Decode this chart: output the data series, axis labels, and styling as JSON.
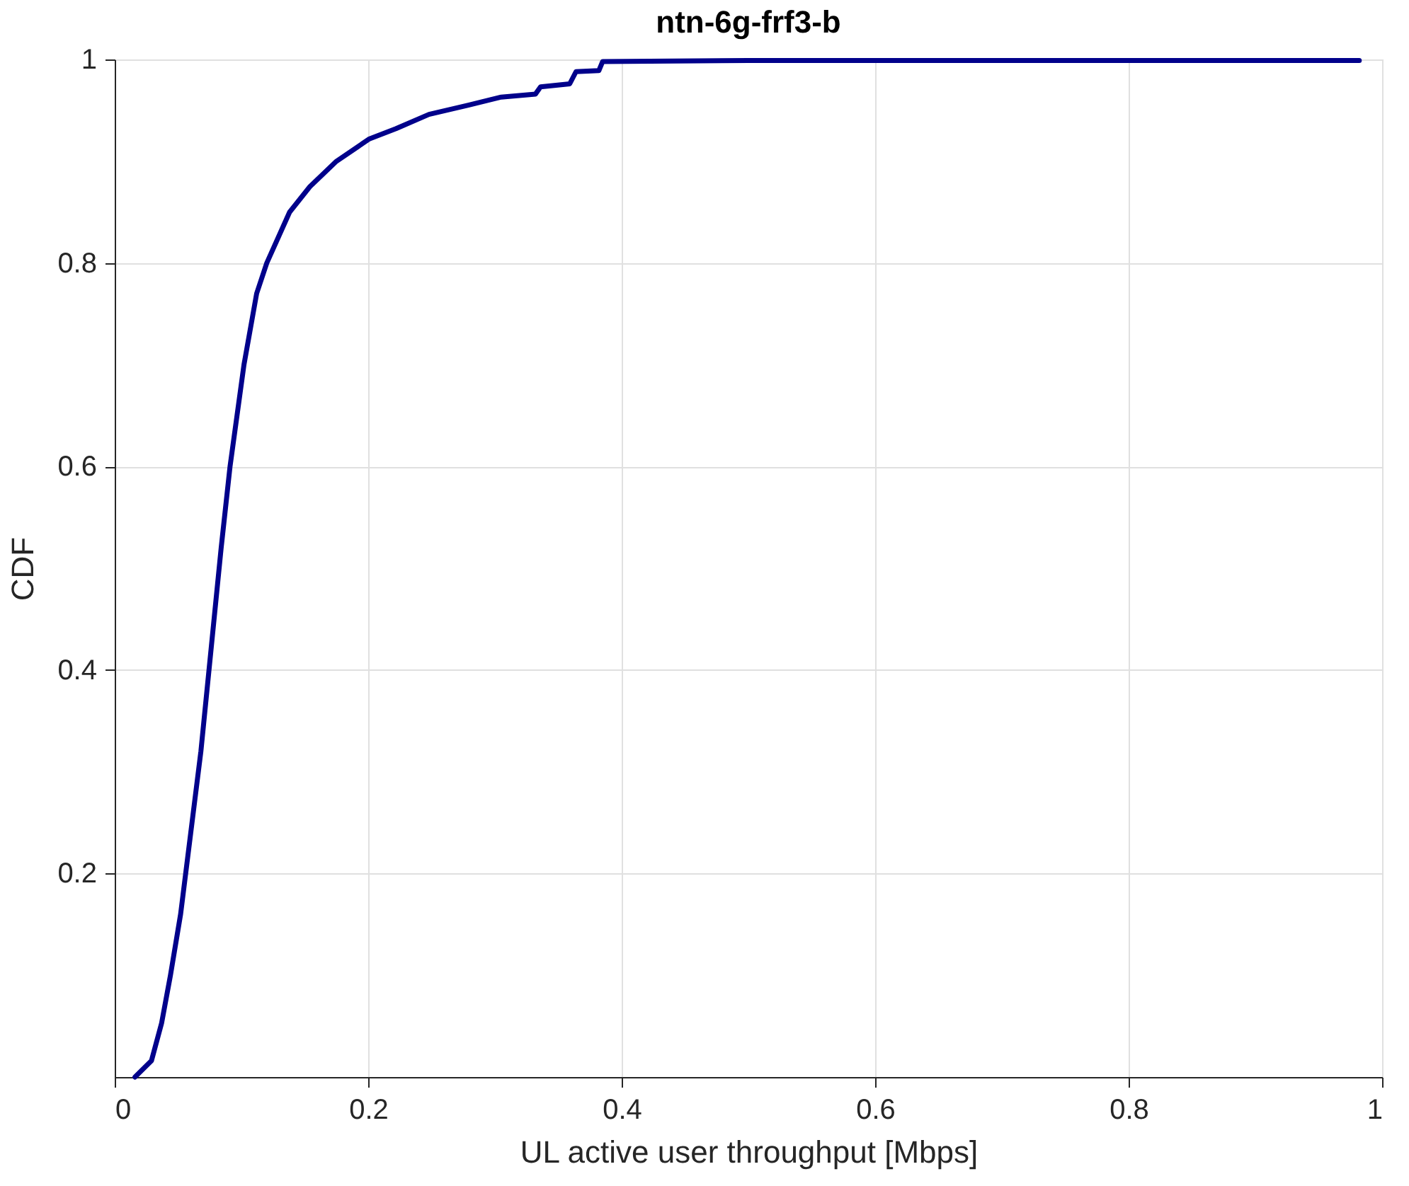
{
  "chart_data": {
    "type": "line",
    "title": "ntn-6g-frf3-b",
    "xlabel": "UL active user throughput [Mbps]",
    "ylabel": "CDF",
    "xlim": [
      0,
      1
    ],
    "xticks": [
      0,
      0.2,
      0.4,
      0.6,
      0.8,
      1
    ],
    "ylim": [
      0,
      1
    ],
    "yticks": [
      0.2,
      0.4,
      0.6,
      0.8,
      1
    ],
    "grid": true,
    "marker": "none",
    "line_style": "solid",
    "series": [
      {
        "color": "#00008b",
        "x": [
          0.016,
          0.029,
          0.037,
          0.044,
          0.052,
          0.06,
          0.068,
          0.076,
          0.084,
          0.091,
          0.102,
          0.112,
          0.12,
          0.138,
          0.154,
          0.175,
          0.201,
          0.222,
          0.248,
          0.279,
          0.305,
          0.332,
          0.336,
          0.359,
          0.364,
          0.382,
          0.385,
          0.5,
          0.7,
          0.982
        ],
        "values": [
          0,
          0.016,
          0.053,
          0.1,
          0.16,
          0.24,
          0.32,
          0.42,
          0.52,
          0.6,
          0.7,
          0.77,
          0.8,
          0.85,
          0.875,
          0.9,
          0.922,
          0.932,
          0.946,
          0.955,
          0.963,
          0.966,
          0.973,
          0.976,
          0.988,
          0.989,
          0.998,
          0.999,
          0.999,
          0.999
        ]
      }
    ]
  }
}
